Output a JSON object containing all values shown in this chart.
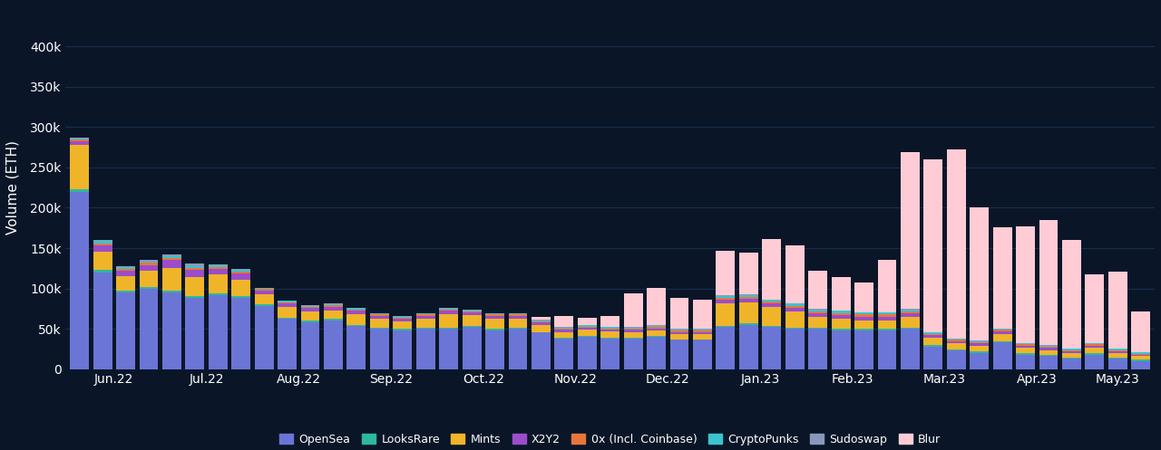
{
  "n_bars": 47,
  "x_tick_labels": [
    "Jun.22",
    "Jul.22",
    "Aug.22",
    "Sep.22",
    "Oct.22",
    "Nov.22",
    "Dec.22",
    "Jan.23",
    "Feb.23",
    "Mar.23",
    "Apr.23",
    "May.23"
  ],
  "x_tick_positions": [
    1.5,
    5.5,
    9.5,
    13.5,
    17.5,
    21.5,
    25.5,
    29.5,
    33.5,
    37.5,
    41.5,
    45.0
  ],
  "series": {
    "OpenSea": [
      220000,
      120000,
      95000,
      100000,
      95000,
      88000,
      92000,
      88000,
      78000,
      62000,
      58000,
      60000,
      53000,
      50000,
      48000,
      50000,
      50000,
      52000,
      48000,
      50000,
      45000,
      38000,
      40000,
      38000,
      38000,
      40000,
      36000,
      36000,
      52000,
      55000,
      52000,
      50000,
      50000,
      48000,
      48000,
      48000,
      50000,
      28000,
      23000,
      20000,
      33000,
      18000,
      16000,
      13000,
      18000,
      13000,
      10000
    ],
    "LooksRare": [
      3000,
      3000,
      2000,
      2000,
      2000,
      2000,
      2000,
      2000,
      2000,
      2000,
      2000,
      2000,
      2000,
      1500,
      1500,
      1500,
      1500,
      1500,
      1500,
      1500,
      1000,
      1000,
      1000,
      1000,
      1000,
      1000,
      1000,
      1000,
      1500,
      1500,
      1500,
      1500,
      1500,
      1500,
      1500,
      1500,
      1500,
      1500,
      1500,
      1500,
      1500,
      1500,
      1500,
      1500,
      1500,
      1500,
      1500
    ],
    "Mints": [
      55000,
      22000,
      18000,
      20000,
      28000,
      24000,
      23000,
      21000,
      13000,
      13000,
      11000,
      11000,
      13000,
      11000,
      9000,
      11000,
      16000,
      13000,
      13000,
      11000,
      9000,
      7000,
      7500,
      7500,
      7000,
      7000,
      6500,
      6500,
      28000,
      26000,
      23000,
      20000,
      13000,
      13000,
      11000,
      11000,
      13000,
      9000,
      7500,
      7500,
      9000,
      7000,
      6000,
      5500,
      7000,
      5500,
      4500
    ],
    "X2Y2": [
      5000,
      8000,
      7000,
      7000,
      10000,
      9000,
      7000,
      7000,
      4500,
      4500,
      4500,
      4500,
      4500,
      3500,
      3500,
      3500,
      4500,
      3500,
      3500,
      3500,
      2500,
      2500,
      2500,
      2500,
      2500,
      2500,
      2500,
      2500,
      4500,
      4500,
      4500,
      4500,
      4500,
      4500,
      4500,
      4500,
      4500,
      3500,
      2500,
      2500,
      3500,
      2500,
      2500,
      2000,
      2500,
      2000,
      1500
    ],
    "0x_Coinbase": [
      1500,
      3000,
      2500,
      2500,
      2500,
      2500,
      2500,
      2500,
      1500,
      1500,
      1500,
      1500,
      1500,
      1500,
      1500,
      1500,
      1500,
      1500,
      1500,
      1500,
      1500,
      1500,
      1500,
      1500,
      1500,
      1500,
      1500,
      1500,
      2500,
      2500,
      2500,
      2500,
      2500,
      2500,
      2500,
      2500,
      2500,
      1500,
      1500,
      1500,
      1500,
      1500,
      1500,
      1500,
      1500,
      1500,
      1500
    ],
    "CryptoPunks": [
      1500,
      2500,
      2000,
      2000,
      2500,
      2500,
      2000,
      2000,
      1500,
      1500,
      1500,
      1500,
      1500,
      1500,
      1500,
      1500,
      1500,
      1500,
      1500,
      1500,
      1500,
      1500,
      1500,
      1500,
      1500,
      1500,
      1500,
      1500,
      2500,
      2500,
      2500,
      2500,
      2500,
      2500,
      2500,
      2500,
      2500,
      1500,
      1500,
      1500,
      1500,
      1500,
      1500,
      1500,
      1500,
      1500,
      1500
    ],
    "Sudoswap": [
      500,
      1500,
      1500,
      1500,
      2500,
      2500,
      1500,
      1500,
      500,
      500,
      500,
      500,
      500,
      500,
      500,
      500,
      500,
      500,
      500,
      500,
      500,
      500,
      500,
      500,
      500,
      500,
      500,
      500,
      500,
      500,
      500,
      500,
      500,
      500,
      500,
      500,
      500,
      500,
      500,
      500,
      500,
      500,
      500,
      500,
      500,
      500,
      500
    ],
    "Blur": [
      0,
      0,
      0,
      0,
      0,
      0,
      0,
      0,
      0,
      0,
      0,
      0,
      0,
      0,
      0,
      0,
      0,
      0,
      0,
      0,
      4000,
      14000,
      9000,
      13000,
      42000,
      47000,
      39000,
      37000,
      55000,
      52000,
      75000,
      72000,
      47000,
      42000,
      37000,
      65000,
      195000,
      215000,
      235000,
      165000,
      125000,
      145000,
      155000,
      135000,
      85000,
      95000,
      50000
    ]
  },
  "colors": {
    "OpenSea": "#6B75D6",
    "LooksRare": "#2DB8A0",
    "Mints": "#F0B429",
    "X2Y2": "#9B4DCA",
    "0x_Coinbase": "#E8763A",
    "CryptoPunks": "#3AC4CE",
    "Sudoswap": "#8899BB",
    "Blur": "#FFCCD5"
  },
  "background_color": "#0a1628",
  "grid_color": "#1a3050",
  "text_color": "#ffffff",
  "ylabel": "Volume (ETH)",
  "ylim": [
    0,
    450000
  ],
  "yticks": [
    0,
    50000,
    100000,
    150000,
    200000,
    250000,
    300000,
    350000,
    400000
  ],
  "legend_labels": {
    "OpenSea": "OpenSea",
    "LooksRare": "LooksRare",
    "Mints": "Mints",
    "X2Y2": "X2Y2",
    "0x_Coinbase": "0x (Incl. Coinbase)",
    "CryptoPunks": "CryptoPunks",
    "Sudoswap": "Sudoswap",
    "Blur": "Blur"
  }
}
